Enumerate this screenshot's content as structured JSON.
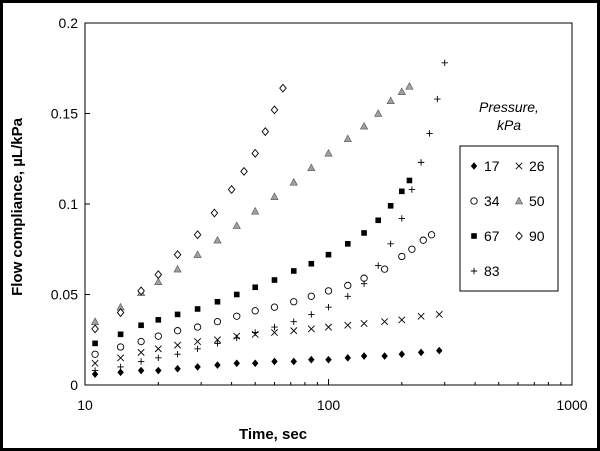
{
  "chart_data": {
    "type": "scatter",
    "xlabel": "Time, sec",
    "ylabel": "Flow compliance, µL/kPa",
    "xscale": "log",
    "xlim": [
      10,
      1000
    ],
    "ylim": [
      0,
      0.2
    ],
    "x_ticks": [
      10,
      100,
      1000
    ],
    "x_tick_labels": [
      "10",
      "100",
      "1000"
    ],
    "y_ticks": [
      0,
      0.05,
      0.1,
      0.15,
      0.2
    ],
    "y_tick_labels": [
      "0",
      "0.05",
      "0.1",
      "0.15",
      "0.2"
    ],
    "grid": false,
    "legend": {
      "title_line1": "Pressure,",
      "title_line2": "kPa",
      "placement": "right"
    },
    "series": [
      {
        "name": "17",
        "marker": "diamond-filled",
        "x": [
          11,
          14,
          17,
          20,
          24,
          29,
          35,
          42,
          50,
          60,
          72,
          85,
          100,
          120,
          140,
          170,
          200,
          240,
          285
        ],
        "y": [
          0.006,
          0.007,
          0.008,
          0.008,
          0.009,
          0.01,
          0.011,
          0.012,
          0.012,
          0.013,
          0.013,
          0.014,
          0.014,
          0.015,
          0.016,
          0.016,
          0.017,
          0.018,
          0.019
        ]
      },
      {
        "name": "26",
        "marker": "x",
        "x": [
          11,
          14,
          17,
          20,
          24,
          29,
          35,
          42,
          50,
          60,
          72,
          85,
          100,
          120,
          140,
          170,
          200,
          240,
          285
        ],
        "y": [
          0.012,
          0.015,
          0.018,
          0.02,
          0.022,
          0.024,
          0.025,
          0.027,
          0.028,
          0.029,
          0.03,
          0.031,
          0.032,
          0.033,
          0.034,
          0.035,
          0.036,
          0.038,
          0.039
        ]
      },
      {
        "name": "34",
        "marker": "circle-open",
        "x": [
          11,
          14,
          17,
          20,
          24,
          29,
          35,
          42,
          50,
          60,
          72,
          85,
          100,
          120,
          140,
          170,
          200,
          220,
          245,
          265
        ],
        "y": [
          0.017,
          0.021,
          0.024,
          0.027,
          0.03,
          0.032,
          0.035,
          0.038,
          0.041,
          0.043,
          0.046,
          0.049,
          0.052,
          0.055,
          0.059,
          0.064,
          0.071,
          0.075,
          0.08,
          0.083
        ]
      },
      {
        "name": "50",
        "marker": "triangle-gray",
        "x": [
          11,
          14,
          17,
          20,
          24,
          29,
          35,
          42,
          50,
          60,
          72,
          85,
          100,
          120,
          140,
          160,
          180,
          200,
          215
        ],
        "y": [
          0.035,
          0.043,
          0.051,
          0.057,
          0.064,
          0.072,
          0.08,
          0.088,
          0.096,
          0.104,
          0.112,
          0.12,
          0.128,
          0.136,
          0.143,
          0.15,
          0.157,
          0.162,
          0.165
        ]
      },
      {
        "name": "67",
        "marker": "square-filled",
        "x": [
          11,
          14,
          17,
          20,
          24,
          29,
          35,
          42,
          50,
          60,
          72,
          85,
          100,
          120,
          140,
          160,
          180,
          200,
          215
        ],
        "y": [
          0.023,
          0.028,
          0.033,
          0.036,
          0.039,
          0.042,
          0.046,
          0.05,
          0.054,
          0.058,
          0.063,
          0.067,
          0.072,
          0.078,
          0.084,
          0.091,
          0.099,
          0.107,
          0.113
        ]
      },
      {
        "name": "90",
        "marker": "diamond-open",
        "x": [
          11,
          14,
          17,
          20,
          24,
          29,
          34,
          40,
          45,
          50,
          55,
          60,
          65
        ],
        "y": [
          0.031,
          0.04,
          0.052,
          0.061,
          0.072,
          0.083,
          0.095,
          0.108,
          0.118,
          0.128,
          0.14,
          0.152,
          0.164
        ]
      },
      {
        "name": "83",
        "marker": "plus",
        "x": [
          11,
          14,
          17,
          20,
          24,
          29,
          35,
          42,
          50,
          60,
          72,
          85,
          100,
          120,
          140,
          160,
          180,
          200,
          220,
          240,
          260,
          280,
          300
        ],
        "y": [
          0.008,
          0.01,
          0.013,
          0.015,
          0.017,
          0.02,
          0.023,
          0.026,
          0.029,
          0.032,
          0.035,
          0.039,
          0.043,
          0.049,
          0.056,
          0.066,
          0.078,
          0.092,
          0.108,
          0.123,
          0.139,
          0.158,
          0.178
        ]
      }
    ]
  }
}
